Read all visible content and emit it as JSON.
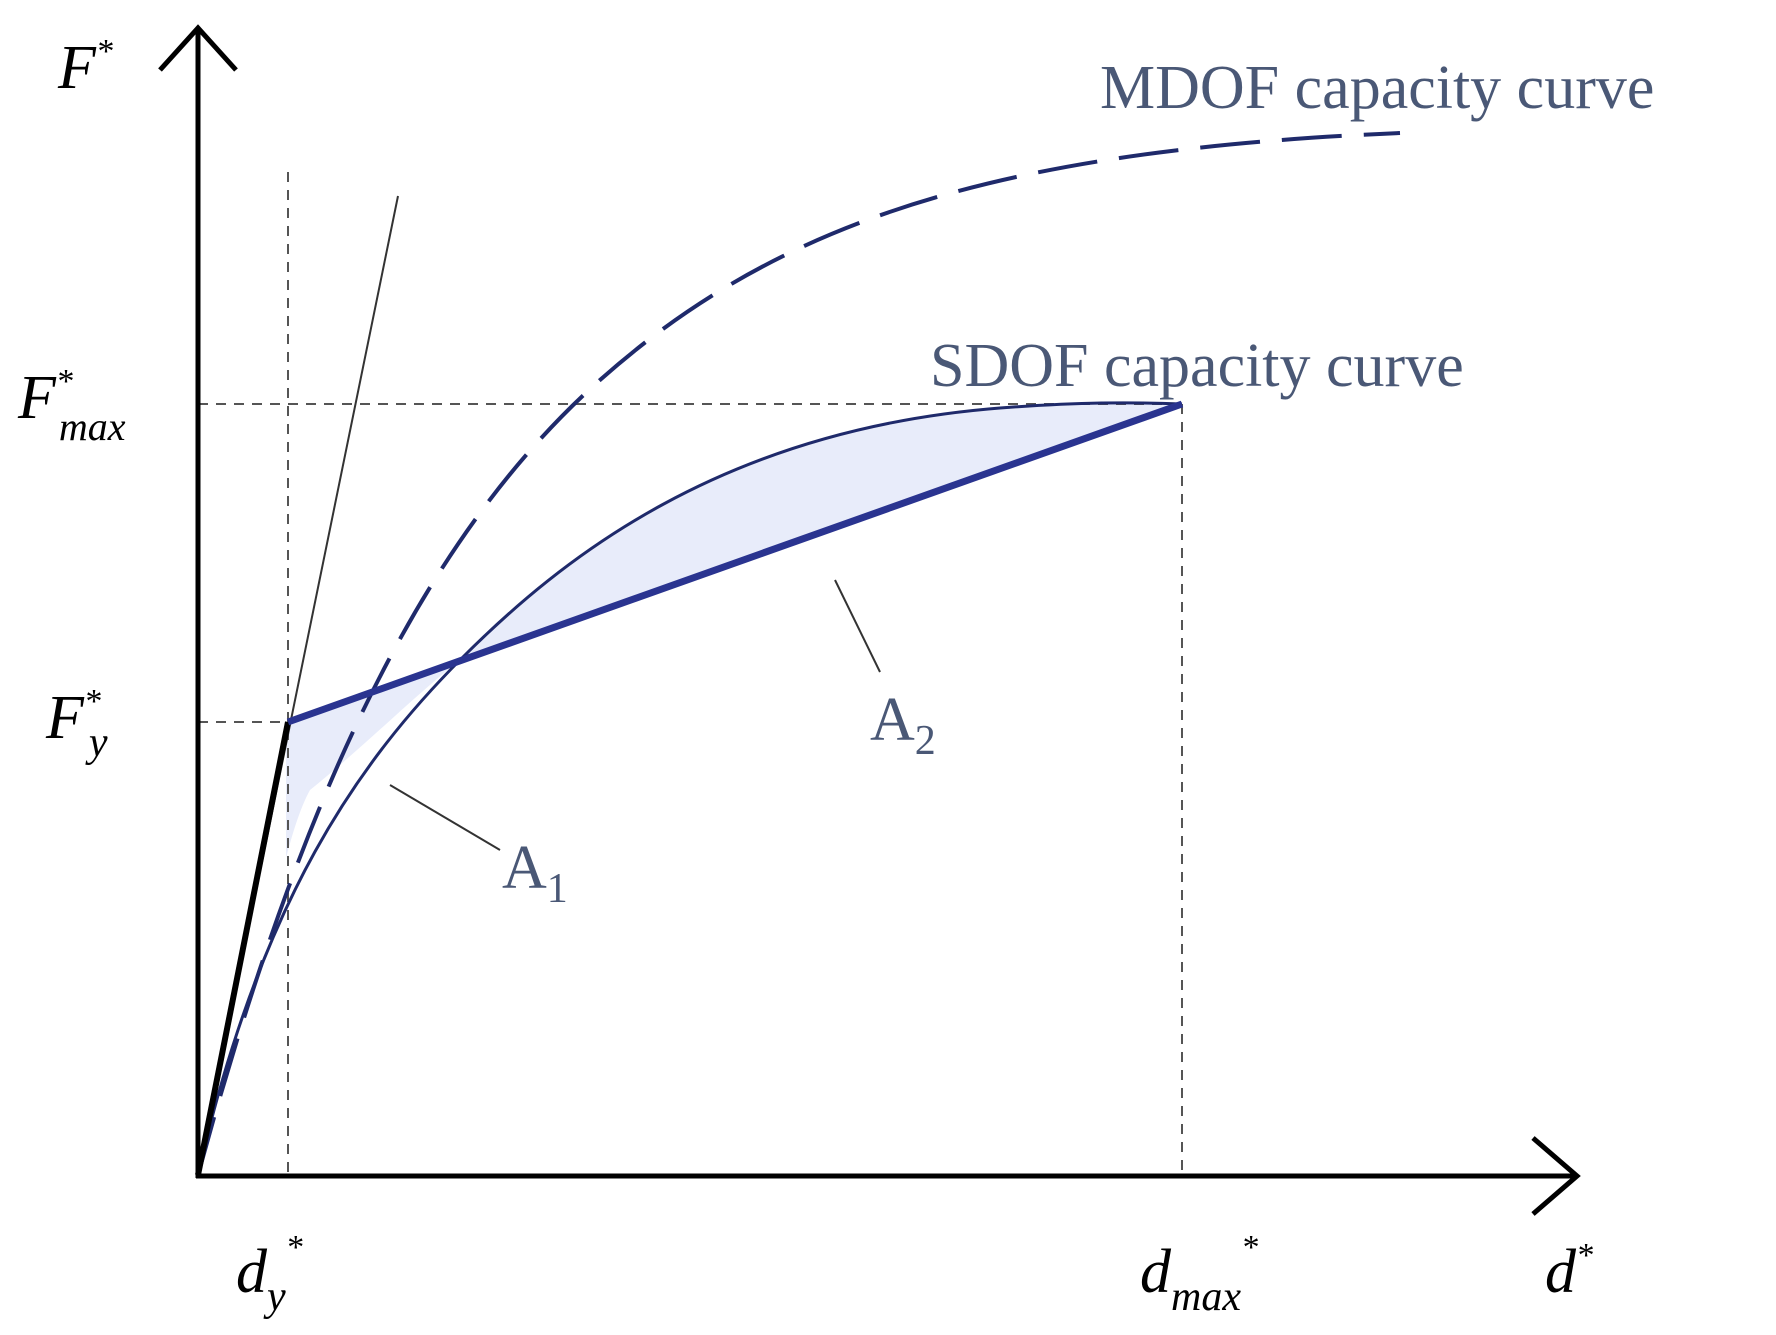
{
  "colors": {
    "axis": "#000000",
    "curve": "#1f2a6b",
    "text": "#4a5876",
    "fill": "#e8ecfa",
    "guide": "#555555"
  },
  "axes": {
    "y_label": {
      "base": "F",
      "sup": "*"
    },
    "x_label": {
      "base": "d",
      "sup": "*"
    }
  },
  "ticks": {
    "f_max": {
      "base": "F",
      "sup": "*",
      "sub": "max"
    },
    "f_y": {
      "base": "F",
      "sup": "*",
      "sub": "y"
    },
    "d_y": {
      "base": "d",
      "sub": "y",
      "sup": "*"
    },
    "d_max": {
      "base": "d",
      "sub": "max",
      "sup": "*"
    }
  },
  "curves": {
    "mdof_label": "MDOF capacity curve",
    "sdof_label": "SDOF capacity curve"
  },
  "areas": {
    "a1": {
      "base": "A",
      "sub": "1"
    },
    "a2": {
      "base": "A",
      "sub": "2"
    }
  },
  "icons": {
    "y_arrow": "arrow-up-icon",
    "x_arrow": "arrow-right-icon"
  }
}
